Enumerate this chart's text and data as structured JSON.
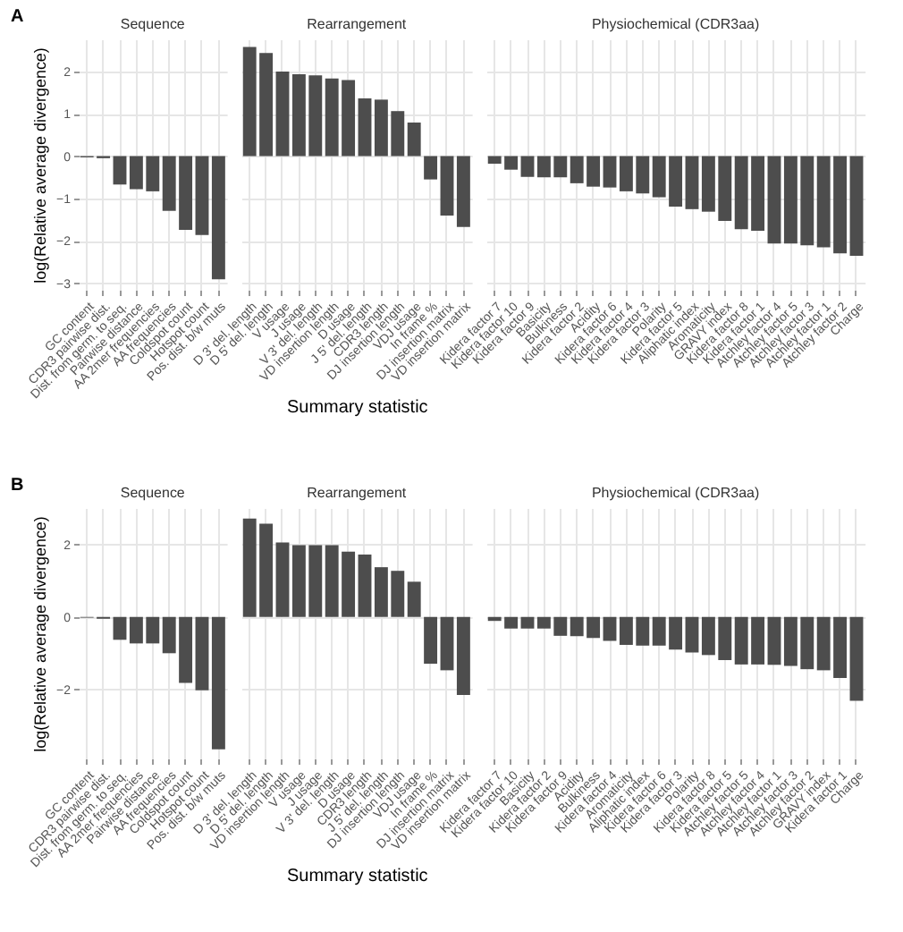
{
  "chart_data": [
    {
      "type": "bar",
      "title": "Sequence",
      "ylabel": "log(Relative average divergence)",
      "annotations": [
        "A"
      ],
      "color": "#4d4d4d",
      "grid": true,
      "ylim": [
        -3.15,
        2.75
      ],
      "yticks": [
        -3,
        -2,
        -1,
        0,
        1,
        2
      ],
      "categories": [
        "GC content",
        "CDR3 pairwise dist.",
        "Dist. from germ. to seq.",
        "Pairwise distance",
        "AA 2mer frequencies",
        "AA frequencies",
        "Coldspot count",
        "Hotspot count",
        "Pos. dist. b/w muts"
      ],
      "values": [
        -0.03,
        -0.05,
        -0.67,
        -0.78,
        -0.83,
        -1.29,
        -1.74,
        -1.86,
        -2.9
      ]
    },
    {
      "type": "bar",
      "title": "Rearrangement",
      "xlabel": "Summary statistic",
      "color": "#4d4d4d",
      "grid": true,
      "tick_labels": "x",
      "ylim": [
        -3.15,
        2.75
      ],
      "yticks": [
        -3,
        -2,
        -1,
        0,
        1,
        2
      ],
      "categories": [
        "D 3' del. length",
        "D 5' del. length",
        "V usage",
        "J usage",
        "V 3' del. length",
        "VD insertion length",
        "D usage",
        "J 5' del. length",
        "CDR3 length",
        "DJ insertion length",
        "VDJ usage",
        "In frame %",
        "DJ insertion matrix",
        "VD insertion matrix"
      ],
      "values": [
        2.57,
        2.43,
        1.99,
        1.93,
        1.9,
        1.83,
        1.79,
        1.36,
        1.33,
        1.06,
        0.79,
        -0.55,
        -1.4,
        -1.67
      ]
    },
    {
      "type": "bar",
      "title": "Physiochemical (CDR3aa)",
      "color": "#4d4d4d",
      "grid": true,
      "tick_labels": "x",
      "ylim": [
        -3.15,
        2.75
      ],
      "yticks": [
        -3,
        -2,
        -1,
        0,
        1,
        2
      ],
      "categories": [
        "Kidera factor 7",
        "Kidera factor 10",
        "Kidera factor 9",
        "Basicity",
        "Bulkiness",
        "Kidera factor 2",
        "Acidity",
        "Kidera factor 6",
        "Kidera factor 4",
        "Kidera factor 3",
        "Polarity",
        "Kidera factor 5",
        "Aliphatic index",
        "Aromaticity",
        "GRAVY index",
        "Kidera factor 8",
        "Kidera factor 1",
        "Atchley factor 4",
        "Atchley factor 5",
        "Atchley factor 3",
        "Atchley factor 1",
        "Atchley factor 2",
        "Charge"
      ],
      "values": [
        -0.18,
        -0.32,
        -0.49,
        -0.5,
        -0.5,
        -0.64,
        -0.72,
        -0.74,
        -0.83,
        -0.88,
        -0.97,
        -1.19,
        -1.25,
        -1.31,
        -1.53,
        -1.72,
        -1.76,
        -2.06,
        -2.06,
        -2.1,
        -2.15,
        -2.29,
        -2.35
      ]
    },
    {
      "type": "bar",
      "title": "Sequence",
      "ylabel": "log(Relative average divergence)",
      "annotations": [
        "B"
      ],
      "color": "#4d4d4d",
      "grid": true,
      "ylim": [
        -3.9,
        3.0
      ],
      "yticks": [
        -2,
        0,
        2
      ],
      "categories": [
        "GC content",
        "CDR3 pairwise dist.",
        "Dist. from germ. to seq.",
        "AA 2mer frequencies",
        "Pairwise distance",
        "AA frequencies",
        "Coldspot count",
        "Hotspot count",
        "Pos. dist. b/w muts"
      ],
      "values": [
        -0.02,
        -0.05,
        -0.63,
        -0.73,
        -0.73,
        -1.0,
        -1.82,
        -2.02,
        -3.65
      ]
    },
    {
      "type": "bar",
      "title": "Rearrangement",
      "xlabel": "Summary statistic",
      "color": "#4d4d4d",
      "grid": true,
      "tick_labels": "x",
      "ylim": [
        -3.9,
        3.0
      ],
      "yticks": [
        -2,
        0,
        2
      ],
      "categories": [
        "D 3' del. length",
        "D 5' del. length",
        "VD insertion length",
        "V usage",
        "J usage",
        "V 3' del. length",
        "D usage",
        "CDR3 length",
        "J 5' del. length",
        "DJ insertion length",
        "VDJ usage",
        "In frame %",
        "DJ insertion matrix",
        "VD insertion matrix"
      ],
      "values": [
        2.71,
        2.57,
        2.05,
        1.98,
        1.98,
        1.98,
        1.8,
        1.72,
        1.37,
        1.27,
        0.97,
        -1.29,
        -1.47,
        -2.15
      ]
    },
    {
      "type": "bar",
      "title": "Physiochemical (CDR3aa)",
      "color": "#4d4d4d",
      "grid": true,
      "tick_labels": "x",
      "ylim": [
        -3.9,
        3.0
      ],
      "yticks": [
        -2,
        0,
        2
      ],
      "categories": [
        "Kidera factor 7",
        "Kidera factor 10",
        "Basicity",
        "Kidera factor 2",
        "Kidera factor 9",
        "Acidity",
        "Bulkiness",
        "Kidera factor 4",
        "Aromaticity",
        "Aliphatic index",
        "Kidera factor 6",
        "Kidera factor 3",
        "Polarity",
        "Kidera factor 8",
        "Kidera factor 5",
        "Atchley factor 5",
        "Atchley factor 4",
        "Atchley factor 1",
        "Atchley factor 3",
        "Atchley factor 2",
        "GRAVY index",
        "Kidera factor 1",
        "Charge"
      ],
      "values": [
        -0.11,
        -0.32,
        -0.32,
        -0.32,
        -0.52,
        -0.53,
        -0.58,
        -0.66,
        -0.77,
        -0.79,
        -0.79,
        -0.9,
        -0.98,
        -1.05,
        -1.19,
        -1.31,
        -1.31,
        -1.32,
        -1.35,
        -1.44,
        -1.47,
        -1.68,
        -2.31
      ]
    }
  ]
}
